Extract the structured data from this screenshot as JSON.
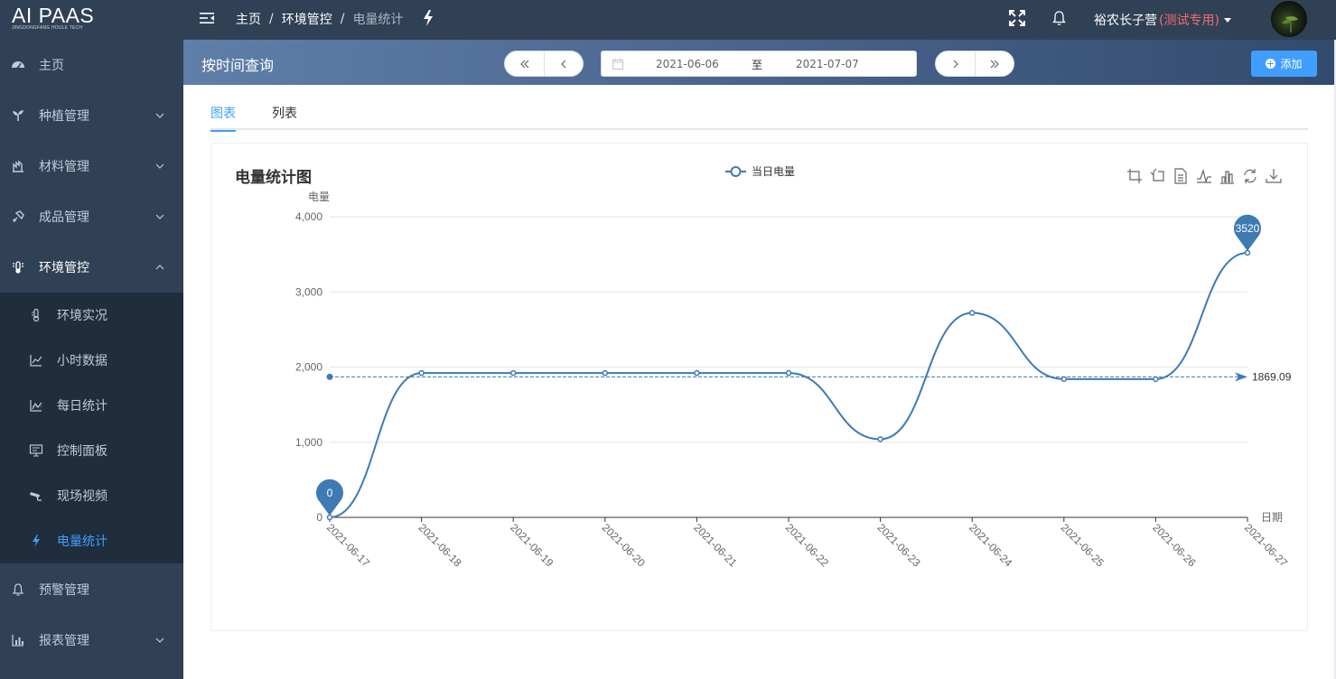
{
  "header": {
    "logo_main": "AI PAAS",
    "logo_sub": "JINGDONGFANG HOULE TECH",
    "breadcrumb": [
      "主页",
      "环境管控",
      "电量统计"
    ],
    "user_name": "裕农长子营",
    "user_tag": "(测试专用)",
    "icons": [
      "hamburger-fold-icon",
      "bolt-icon",
      "fullscreen-icon",
      "bell-icon"
    ]
  },
  "sidebar": {
    "items": [
      {
        "label": "主页",
        "icon": "dashboard-icon"
      },
      {
        "label": "种植管理",
        "icon": "sprout-icon"
      },
      {
        "label": "材料管理",
        "icon": "material-icon"
      },
      {
        "label": "成品管理",
        "icon": "product-icon"
      },
      {
        "label": "环境管控",
        "icon": "environment-icon"
      },
      {
        "label": "预警管理",
        "icon": "bell-icon"
      },
      {
        "label": "报表管理",
        "icon": "report-icon"
      }
    ],
    "sub_items": [
      {
        "label": "环境实况",
        "icon": "thermometer-icon"
      },
      {
        "label": "小时数据",
        "icon": "line-chart-icon"
      },
      {
        "label": "每日统计",
        "icon": "stat-chart-icon"
      },
      {
        "label": "控制面板",
        "icon": "monitor-icon"
      },
      {
        "label": "现场视频",
        "icon": "camera-icon"
      },
      {
        "label": "电量统计",
        "icon": "bolt-icon"
      }
    ],
    "active_sub": "电量统计",
    "bg_color": "#304156",
    "sub_bg_color": "#1f2d3d",
    "active_color": "#409eff"
  },
  "query": {
    "title": "按时间查询",
    "date_start": "2021-06-06",
    "date_sep": "至",
    "date_end": "2021-07-07",
    "add_label": "添加"
  },
  "tabs": [
    {
      "label": "图表",
      "active": true
    },
    {
      "label": "列表",
      "active": false
    }
  ],
  "chart_data": {
    "type": "line",
    "title": "电量统计图",
    "ylabel": "电量",
    "xlabel": "日期",
    "series": [
      {
        "name": "当日电量",
        "color": "#3e7ab3",
        "smooth": true,
        "values": [
          0,
          1920,
          1920,
          1920,
          1920,
          1920,
          1040,
          2720,
          1840,
          1840,
          3520
        ]
      }
    ],
    "categories": [
      "2021-06-17",
      "2021-06-18",
      "2021-06-19",
      "2021-06-20",
      "2021-06-21",
      "2021-06-22",
      "2021-06-23",
      "2021-06-24",
      "2021-06-25",
      "2021-06-26",
      "2021-06-27"
    ],
    "ylim": [
      0,
      4000
    ],
    "yticks": [
      0,
      1000,
      2000,
      3000,
      4000
    ],
    "ytick_labels": [
      "0",
      "1,000",
      "2,000",
      "3,000",
      "4,000"
    ],
    "mark_points": [
      {
        "label": "0",
        "category": "2021-06-17",
        "value": 0
      },
      {
        "label": "3520",
        "category": "2021-06-27",
        "value": 3520
      }
    ],
    "mark_line": {
      "type": "average",
      "value": 1869.09,
      "label": "1869.09"
    },
    "legend_position": "top-center",
    "grid": "horizontal",
    "toolbox": [
      "zoom-icon",
      "zoom-reset-icon",
      "data-view-icon",
      "line-type-icon",
      "bar-type-icon",
      "restore-icon",
      "save-image-icon"
    ]
  }
}
